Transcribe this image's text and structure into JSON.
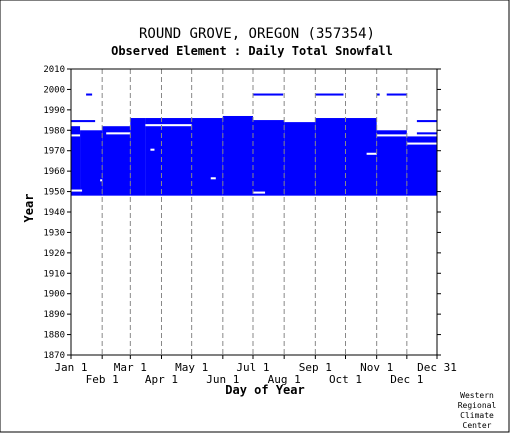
{
  "chart_data": {
    "type": "heatmap",
    "title": "ROUND GROVE, OREGON   (357354)",
    "subtitle": "Observed Element : Daily Total Snowfall",
    "xlabel": "Day of Year",
    "ylabel": "Year",
    "xlim": [
      1,
      365
    ],
    "ylim": [
      1870,
      2010
    ],
    "y_ticks": [
      1870,
      1880,
      1890,
      1900,
      1910,
      1920,
      1930,
      1940,
      1950,
      1960,
      1970,
      1980,
      1990,
      2000,
      2010
    ],
    "x_ticks_upper": [
      {
        "label": "Jan 1",
        "day": 1
      },
      {
        "label": "Mar 1",
        "day": 60
      },
      {
        "label": "May 1",
        "day": 121
      },
      {
        "label": "Jul 1",
        "day": 182
      },
      {
        "label": "Sep 1",
        "day": 244
      },
      {
        "label": "Nov 1",
        "day": 305
      },
      {
        "label": "Dec 31",
        "day": 365
      }
    ],
    "x_ticks_lower": [
      {
        "label": "Feb 1",
        "day": 32
      },
      {
        "label": "Apr 1",
        "day": 91
      },
      {
        "label": "Jun 1",
        "day": 152
      },
      {
        "label": "Aug 1",
        "day": 213
      },
      {
        "label": "Oct 1",
        "day": 274
      },
      {
        "label": "Dec 1",
        "day": 335
      }
    ],
    "gridlines_x": true,
    "gridlines_y": false,
    "series_color": "#0000ff",
    "data_coverage": [
      {
        "day_start": 1,
        "day_end": 10,
        "year_start": 1948,
        "year_end": 1982
      },
      {
        "day_start": 10,
        "day_end": 32,
        "year_start": 1948,
        "year_end": 1980
      },
      {
        "day_start": 32,
        "day_end": 60,
        "year_start": 1948,
        "year_end": 1982
      },
      {
        "day_start": 60,
        "day_end": 75,
        "year_start": 1948,
        "year_end": 1986
      },
      {
        "day_start": 75,
        "day_end": 152,
        "year_start": 1948,
        "year_end": 1986
      },
      {
        "day_start": 152,
        "day_end": 182,
        "year_start": 1948,
        "year_end": 1987
      },
      {
        "day_start": 182,
        "day_end": 213,
        "year_start": 1948,
        "year_end": 1985
      },
      {
        "day_start": 213,
        "day_end": 244,
        "year_start": 1948,
        "year_end": 1984
      },
      {
        "day_start": 244,
        "day_end": 305,
        "year_start": 1948,
        "year_end": 1986
      },
      {
        "day_start": 305,
        "day_end": 335,
        "year_start": 1948,
        "year_end": 1980
      },
      {
        "day_start": 335,
        "day_end": 365,
        "year_start": 1948,
        "year_end": 1977
      },
      {
        "day_start": 1,
        "day_end": 25,
        "year_start": 1984,
        "year_end": 1985
      },
      {
        "day_start": 16,
        "day_end": 22,
        "year_start": 1997,
        "year_end": 1998
      },
      {
        "day_start": 182,
        "day_end": 212,
        "year_start": 1997,
        "year_end": 1998
      },
      {
        "day_start": 244,
        "day_end": 272,
        "year_start": 1997,
        "year_end": 1998
      },
      {
        "day_start": 305,
        "day_end": 308,
        "year_start": 1997,
        "year_end": 1998
      },
      {
        "day_start": 315,
        "day_end": 335,
        "year_start": 1997,
        "year_end": 1998
      },
      {
        "day_start": 345,
        "day_end": 365,
        "year_start": 1984,
        "year_end": 1985
      },
      {
        "day_start": 345,
        "day_end": 365,
        "year_start": 1978,
        "year_end": 1979
      }
    ],
    "data_gaps": [
      {
        "day_start": 1,
        "day_end": 10,
        "year_start": 1977,
        "year_end": 1978
      },
      {
        "day_start": 1,
        "day_end": 12,
        "year_start": 1950,
        "year_end": 1951
      },
      {
        "day_start": 30,
        "day_end": 32,
        "year_start": 1955,
        "year_end": 1956
      },
      {
        "day_start": 36,
        "day_end": 60,
        "year_start": 1978,
        "year_end": 1979
      },
      {
        "day_start": 80,
        "day_end": 84,
        "year_start": 1970,
        "year_end": 1971
      },
      {
        "day_start": 75,
        "day_end": 121,
        "year_start": 1982,
        "year_end": 1983
      },
      {
        "day_start": 140,
        "day_end": 145,
        "year_start": 1956,
        "year_end": 1957
      },
      {
        "day_start": 182,
        "day_end": 194,
        "year_start": 1949,
        "year_end": 1950
      },
      {
        "day_start": 295,
        "day_end": 305,
        "year_start": 1968,
        "year_end": 1969
      },
      {
        "day_start": 335,
        "day_end": 365,
        "year_start": 1973,
        "year_end": 1974
      },
      {
        "day_start": 305,
        "day_end": 335,
        "year_start": 1977,
        "year_end": 1978
      }
    ]
  },
  "credit": {
    "line1": "Western",
    "line2": "Regional",
    "line3": "Climate",
    "line4": "Center"
  }
}
